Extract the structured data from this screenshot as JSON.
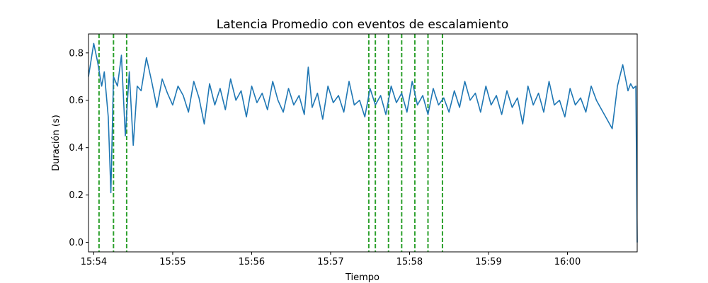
{
  "chart_data": {
    "type": "line",
    "title": "Latencia Promedio con eventos de escalamiento",
    "xlabel": "Tiempo",
    "ylabel": "Duración (s)",
    "x_range": [
      "15:53:56",
      "16:00:53"
    ],
    "ylim": [
      -0.04,
      0.88
    ],
    "x_ticks": [
      "15:54",
      "15:55",
      "15:56",
      "15:57",
      "15:58",
      "15:59",
      "16:00"
    ],
    "y_ticks": [
      "0.0",
      "0.2",
      "0.4",
      "0.6",
      "0.8"
    ],
    "grid": false,
    "line_color": "#1f77b4",
    "event_color": "#2ca02c",
    "series": [
      {
        "x": [
          "15:53:56",
          "15:54:00",
          "15:54:03",
          "15:54:06",
          "15:54:08",
          "15:54:11",
          "15:54:13",
          "15:54:15",
          "15:54:18",
          "15:54:21",
          "15:54:24",
          "15:54:27",
          "15:54:30",
          "15:54:33",
          "15:54:36",
          "15:54:40",
          "15:54:44",
          "15:54:48",
          "15:54:52",
          "15:54:56",
          "15:55:00",
          "15:55:04",
          "15:55:08",
          "15:55:12",
          "15:55:16",
          "15:55:20",
          "15:55:24",
          "15:55:28",
          "15:55:32",
          "15:55:36",
          "15:55:40",
          "15:55:44",
          "15:55:48",
          "15:55:52",
          "15:55:56",
          "15:56:00",
          "15:56:04",
          "15:56:08",
          "15:56:12",
          "15:56:16",
          "15:56:20",
          "15:56:24",
          "15:56:28",
          "15:56:32",
          "15:56:36",
          "15:56:40",
          "15:56:43",
          "15:56:46",
          "15:56:50",
          "15:56:54",
          "15:56:58",
          "15:57:02",
          "15:57:06",
          "15:57:10",
          "15:57:14",
          "15:57:18",
          "15:57:22",
          "15:57:26",
          "15:57:30",
          "15:57:34",
          "15:57:38",
          "15:57:42",
          "15:57:46",
          "15:57:50",
          "15:57:54",
          "15:57:58",
          "15:58:02",
          "15:58:06",
          "15:58:10",
          "15:58:14",
          "15:58:18",
          "15:58:22",
          "15:58:26",
          "15:58:30",
          "15:58:34",
          "15:58:38",
          "15:58:42",
          "15:58:46",
          "15:58:50",
          "15:58:54",
          "15:58:58",
          "15:59:02",
          "15:59:06",
          "15:59:10",
          "15:59:14",
          "15:59:18",
          "15:59:22",
          "15:59:26",
          "15:59:30",
          "15:59:34",
          "15:59:38",
          "15:59:42",
          "15:59:46",
          "15:59:50",
          "15:59:54",
          "15:59:58",
          "16:00:02",
          "16:00:06",
          "16:00:10",
          "16:00:14",
          "16:00:18",
          "16:00:22",
          "16:00:26",
          "16:00:30",
          "16:00:34",
          "16:00:38",
          "16:00:42",
          "16:00:46",
          "16:00:48",
          "16:00:50",
          "16:00:52",
          "16:00:53"
        ],
        "values": [
          0.7,
          0.84,
          0.76,
          0.66,
          0.72,
          0.53,
          0.21,
          0.7,
          0.66,
          0.79,
          0.45,
          0.72,
          0.41,
          0.66,
          0.64,
          0.78,
          0.68,
          0.57,
          0.69,
          0.63,
          0.58,
          0.66,
          0.62,
          0.55,
          0.68,
          0.61,
          0.5,
          0.67,
          0.58,
          0.65,
          0.56,
          0.69,
          0.6,
          0.64,
          0.53,
          0.66,
          0.59,
          0.63,
          0.56,
          0.68,
          0.6,
          0.55,
          0.65,
          0.58,
          0.62,
          0.54,
          0.74,
          0.57,
          0.63,
          0.52,
          0.66,
          0.59,
          0.62,
          0.55,
          0.68,
          0.58,
          0.6,
          0.53,
          0.65,
          0.58,
          0.62,
          0.54,
          0.66,
          0.59,
          0.63,
          0.55,
          0.68,
          0.58,
          0.62,
          0.54,
          0.65,
          0.58,
          0.61,
          0.55,
          0.64,
          0.57,
          0.68,
          0.6,
          0.63,
          0.55,
          0.66,
          0.58,
          0.62,
          0.54,
          0.64,
          0.57,
          0.61,
          0.5,
          0.66,
          0.58,
          0.63,
          0.55,
          0.68,
          0.58,
          0.6,
          0.53,
          0.65,
          0.58,
          0.61,
          0.55,
          0.66,
          0.6,
          0.56,
          0.52,
          0.48,
          0.66,
          0.75,
          0.64,
          0.67,
          0.65,
          0.66,
          0.0
        ]
      }
    ],
    "events": [
      "15:54:04",
      "15:54:15",
      "15:54:25",
      "15:57:29",
      "15:57:34",
      "15:57:44",
      "15:57:54",
      "15:58:04",
      "15:58:14",
      "15:58:25"
    ]
  }
}
